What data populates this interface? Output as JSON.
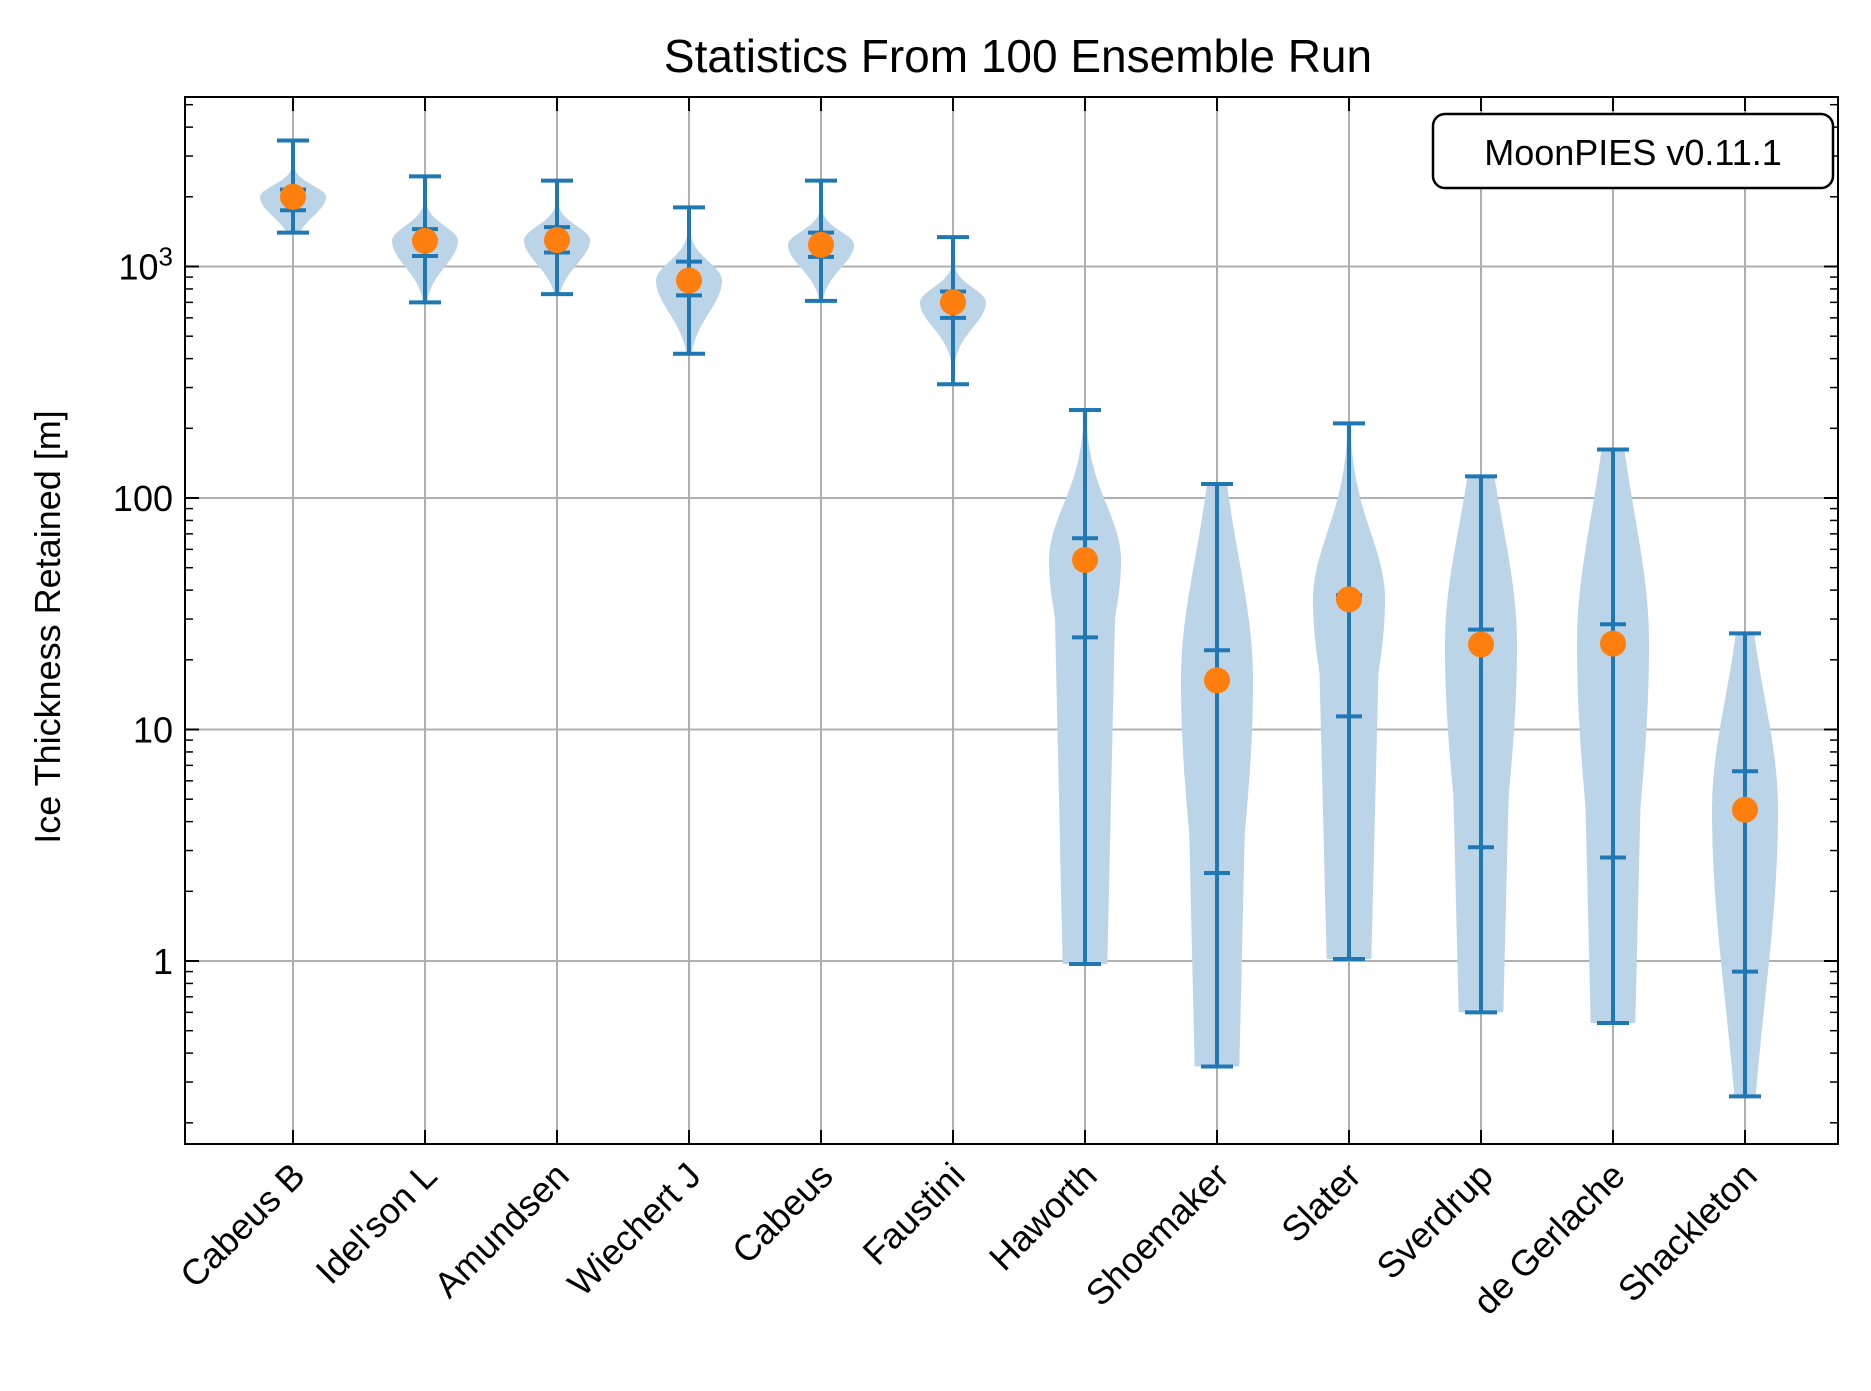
{
  "chart_data": {
    "type": "violin",
    "title": "Statistics From 100 Ensemble Run",
    "xlabel": "",
    "ylabel": "Ice Thickness Retained [m]",
    "yscale": "log",
    "ylim": [
      0.16,
      5000
    ],
    "yticks": [
      {
        "value": 1,
        "label": "1"
      },
      {
        "value": 10,
        "label": "10"
      },
      {
        "value": 100,
        "label": "100"
      },
      {
        "value": 1000,
        "label": "10",
        "sup": "3"
      }
    ],
    "grid": true,
    "annotation": "MoonPIES v0.11.1",
    "annotation_placement": "top-right",
    "colors": {
      "violin": "#1f77b4",
      "violin_fill": "#bcd4e8",
      "marker": "#ff7f0e",
      "grid": "#b0b0b0"
    },
    "categories": [
      "Cabeus B",
      "Idel'son L",
      "Amundsen",
      "Wiechert J",
      "Cabeus",
      "Faustini",
      "Haworth",
      "Shoemaker",
      "Slater",
      "Sverdrup",
      "de Gerlache",
      "Shackleton"
    ],
    "min": [
      1400,
      700,
      760,
      420,
      710,
      310,
      0.97,
      0.35,
      1.02,
      0.6,
      0.54,
      0.26
    ],
    "max": [
      3500,
      2450,
      2350,
      1800,
      2350,
      1340,
      240,
      115,
      210,
      124,
      162,
      26
    ],
    "q1": [
      1750,
      1110,
      1150,
      750,
      1100,
      600,
      25,
      2.4,
      11.4,
      3.1,
      2.8,
      0.9
    ],
    "q3": [
      2150,
      1450,
      1480,
      1050,
      1400,
      780,
      67,
      22,
      38,
      27,
      28.5,
      6.6
    ],
    "median": [
      2000,
      1290,
      1300,
      870,
      1240,
      700,
      54,
      16.3,
      36.5,
      23.3,
      23.5,
      4.5
    ]
  }
}
